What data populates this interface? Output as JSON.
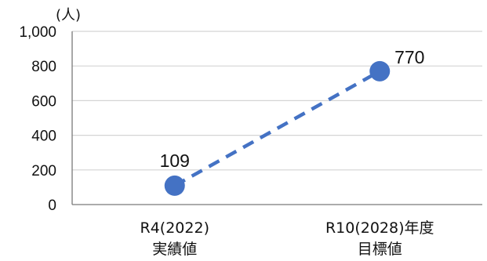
{
  "chart_data": {
    "type": "line",
    "unit_label": "(人)",
    "categories": [
      {
        "line1": "R4(2022)",
        "line2": "実績値"
      },
      {
        "line1": "R10(2028)年度",
        "line2": "目標値"
      }
    ],
    "values": [
      109,
      770
    ],
    "data_labels": [
      "109",
      "770"
    ],
    "y_ticks": [
      {
        "value": 0,
        "label": "0"
      },
      {
        "value": 200,
        "label": "200"
      },
      {
        "value": 400,
        "label": "400"
      },
      {
        "value": 600,
        "label": "600"
      },
      {
        "value": 800,
        "label": "800"
      },
      {
        "value": 1000,
        "label": "1,000"
      }
    ],
    "ylim": [
      0,
      1000
    ],
    "grid": true,
    "line_style": "dashed",
    "series_color": "#4472c4"
  }
}
